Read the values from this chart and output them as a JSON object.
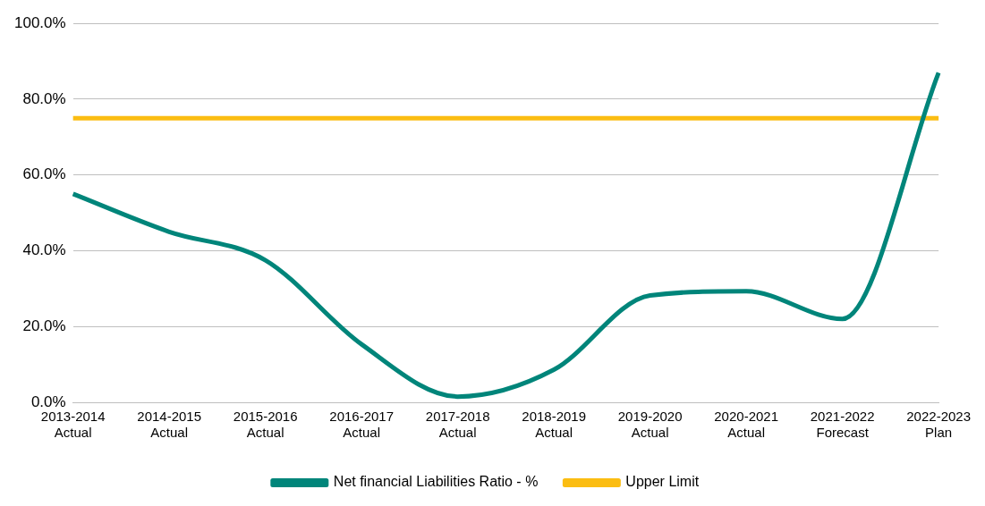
{
  "chart_data": {
    "type": "line",
    "categories": [
      "2013-2014\nActual",
      "2014-2015\nActual",
      "2015-2016\nActual",
      "2016-2017\nActual",
      "2017-2018\nActual",
      "2018-2019\nActual",
      "2019-2020\nActual",
      "2020-2021\nActual",
      "2021-2022\nForecast",
      "2022-2023\nPlan"
    ],
    "series": [
      {
        "name": "Net financial Liabilities Ratio - %",
        "color": "#00857a",
        "values": [
          55,
          45,
          37.5,
          15.3,
          1.5,
          8.6,
          28.2,
          29.3,
          22,
          87
        ]
      },
      {
        "name": "Upper Limit",
        "color": "#fbbd12",
        "values": [
          75,
          75,
          75,
          75,
          75,
          75,
          75,
          75,
          75,
          75
        ]
      }
    ],
    "ylim": [
      0,
      100
    ],
    "yticks": [
      {
        "value": 0,
        "label": "0.0%"
      },
      {
        "value": 20,
        "label": "20.0%"
      },
      {
        "value": 40,
        "label": "40.0%"
      },
      {
        "value": 60,
        "label": "60.0%"
      },
      {
        "value": 80,
        "label": "80.0%"
      },
      {
        "value": 100,
        "label": "100.0%"
      }
    ],
    "grid": "y",
    "legend": "bottom",
    "marker": "none",
    "line_style": "solid"
  }
}
